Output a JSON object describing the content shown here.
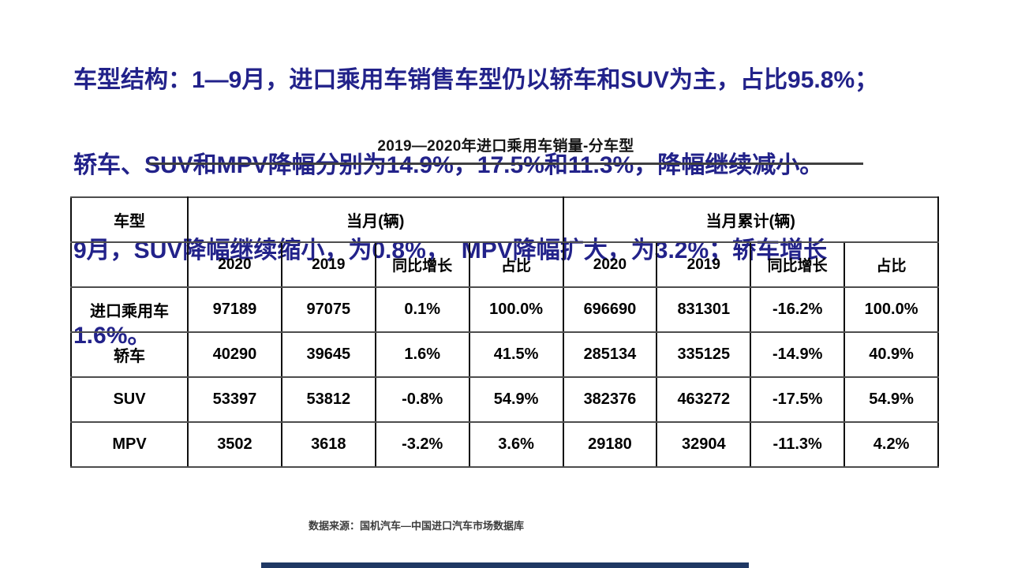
{
  "heading": {
    "lines": [
      "车型结构：1—9月，进口乘用车销售车型仍以轿车和SUV为主，占比95.8%；",
      "轿车、SUV和MPV降幅分别为14.9%，17.5%和11.3%，降幅继续减小。",
      "9月，SUV降幅继续缩小，为0.8%，　MPV降幅扩大，为3.2%；轿车增长",
      "1.6%。"
    ]
  },
  "chart": {
    "title": "2019—2020年进口乘用车销量-分车型"
  },
  "table": {
    "header": {
      "vehicle_type": "车型",
      "month_group": "当月(辆)",
      "cumulative_group": "当月累计(辆)",
      "sub": [
        "2020",
        "2019",
        "同比增长",
        "占比",
        "2020",
        "2019",
        "同比增长",
        "占比"
      ]
    },
    "rows": [
      {
        "name": "进口乘用车",
        "cells": [
          "97189",
          "97075",
          "0.1%",
          "100.0%",
          "696690",
          "831301",
          "-16.2%",
          "100.0%"
        ]
      },
      {
        "name": "轿车",
        "cells": [
          "40290",
          "39645",
          "1.6%",
          "41.5%",
          "285134",
          "335125",
          "-14.9%",
          "40.9%"
        ]
      },
      {
        "name": "SUV",
        "cells": [
          "53397",
          "53812",
          "-0.8%",
          "54.9%",
          "382376",
          "463272",
          "-17.5%",
          "54.9%"
        ]
      },
      {
        "name": "MPV",
        "cells": [
          "3502",
          "3618",
          "-3.2%",
          "3.6%",
          "29180",
          "32904",
          "-11.3%",
          "4.2%"
        ]
      }
    ]
  },
  "footer": {
    "source": "数据来源：国机汽车—中国进口汽车市场数据库"
  },
  "colors": {
    "heading_text": "#22228A",
    "bottom_bar": "#1F3864",
    "title_underline": "#3F3F3F"
  }
}
